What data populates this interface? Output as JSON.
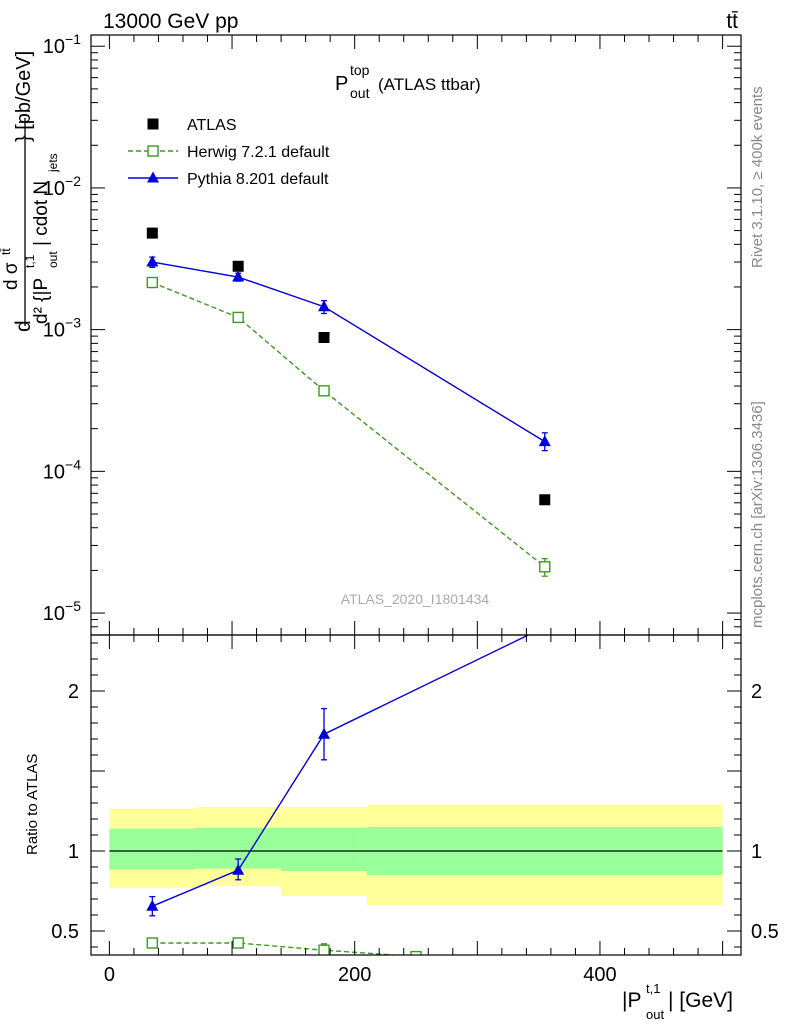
{
  "header": {
    "energy_label": "13000 GeV pp",
    "process_label": "tt̄"
  },
  "side_labels": {
    "rivet": "Rivet 3.1.10, ≥ 400k events",
    "mcplots": "mcplots.cern.ch [arXiv:1306.3436]"
  },
  "analysis_id": "ATLAS_2020_I1801434",
  "colors": {
    "atlas": "#000000",
    "herwig": "#3c9b1e",
    "pythia": "#0000dd",
    "band_inner": "#99ff99",
    "band_outer": "#ffff99"
  },
  "chart_data": [
    {
      "type": "scatter",
      "panel": "main",
      "title_main": "P",
      "title_sup": "top",
      "title_sub": "out",
      "title_suffix": "(ATLAS ttbar)",
      "ylabel": "d σ^{tt̄} / d^2 {|P_out^{t,1}| cdot N_jets} [pb/GeV]",
      "yscale": "log",
      "ylim": [
        7e-06,
        0.12
      ],
      "xlim": [
        -15,
        515
      ],
      "y_tick_labels": [
        "10^-5",
        "10^-4",
        "10^-3",
        "10^-2",
        "10^-1"
      ],
      "legend_position": "top-left",
      "series": [
        {
          "name": "ATLAS",
          "marker": "filled-square",
          "x": [
            35,
            105,
            175,
            355
          ],
          "y": [
            0.0048,
            0.0028,
            0.00088,
            6.3e-05
          ]
        },
        {
          "name": "Herwig 7.2.1 default",
          "marker": "open-square",
          "line": "dashed",
          "x": [
            35,
            105,
            175,
            355
          ],
          "y": [
            0.00215,
            0.00122,
            0.00037,
            2.12e-05
          ],
          "err_lo": [
            6e-05,
            4e-05,
            2e-05,
            3e-06
          ],
          "err_hi": [
            6e-05,
            4e-05,
            2e-05,
            3e-06
          ]
        },
        {
          "name": "Pythia 8.201 default",
          "marker": "filled-triangle",
          "line": "solid",
          "x": [
            35,
            105,
            175,
            355
          ],
          "y": [
            0.003,
            0.00235,
            0.00145,
            0.000162
          ],
          "err_lo": [
            0.00025,
            0.00015,
            0.00015,
            2.2e-05
          ],
          "err_hi": [
            0.00025,
            0.00015,
            0.00015,
            2.5e-05
          ]
        }
      ]
    },
    {
      "type": "line",
      "panel": "ratio",
      "ylabel": "Ratio to ATLAS",
      "xlabel_main": "|P",
      "xlabel_sup": "t,1",
      "xlabel_sub": "out",
      "xlabel_suffix": "| [GeV]",
      "ylim": [
        0.35,
        2.35
      ],
      "xlim": [
        -15,
        515
      ],
      "x_ticks": [
        0,
        200,
        400
      ],
      "y_ticks": [
        0.5,
        1,
        2
      ],
      "bands": [
        {
          "x0": 0,
          "x1": 70,
          "inner": [
            0.885,
            1.14
          ],
          "outer": [
            0.77,
            1.265
          ]
        },
        {
          "x0": 70,
          "x1": 140,
          "inner": [
            0.89,
            1.145
          ],
          "outer": [
            0.78,
            1.275
          ]
        },
        {
          "x0": 140,
          "x1": 210,
          "inner": [
            0.875,
            1.145
          ],
          "outer": [
            0.72,
            1.275
          ]
        },
        {
          "x0": 210,
          "x1": 500,
          "inner": [
            0.85,
            1.15
          ],
          "outer": [
            0.66,
            1.29
          ]
        }
      ],
      "series": [
        {
          "name": "Herwig 7.2.1 default",
          "marker": "open-square",
          "line": "dashed",
          "x": [
            35,
            105,
            175,
            250
          ],
          "y": [
            0.425,
            0.425,
            0.38,
            0.34
          ],
          "err_lo": [
            0.0,
            0.02,
            0.02,
            0.0
          ],
          "err_hi": [
            0.0,
            0.02,
            0.04,
            0.0
          ]
        },
        {
          "name": "Pythia 8.201 default",
          "marker": "filled-triangle",
          "line": "solid",
          "x": [
            35,
            105,
            175,
            355
          ],
          "y": [
            0.655,
            0.88,
            1.73,
            2.4
          ],
          "err_lo": [
            0.06,
            0.06,
            0.16,
            0.0
          ],
          "err_hi": [
            0.06,
            0.07,
            0.16,
            0.0
          ]
        }
      ]
    }
  ]
}
